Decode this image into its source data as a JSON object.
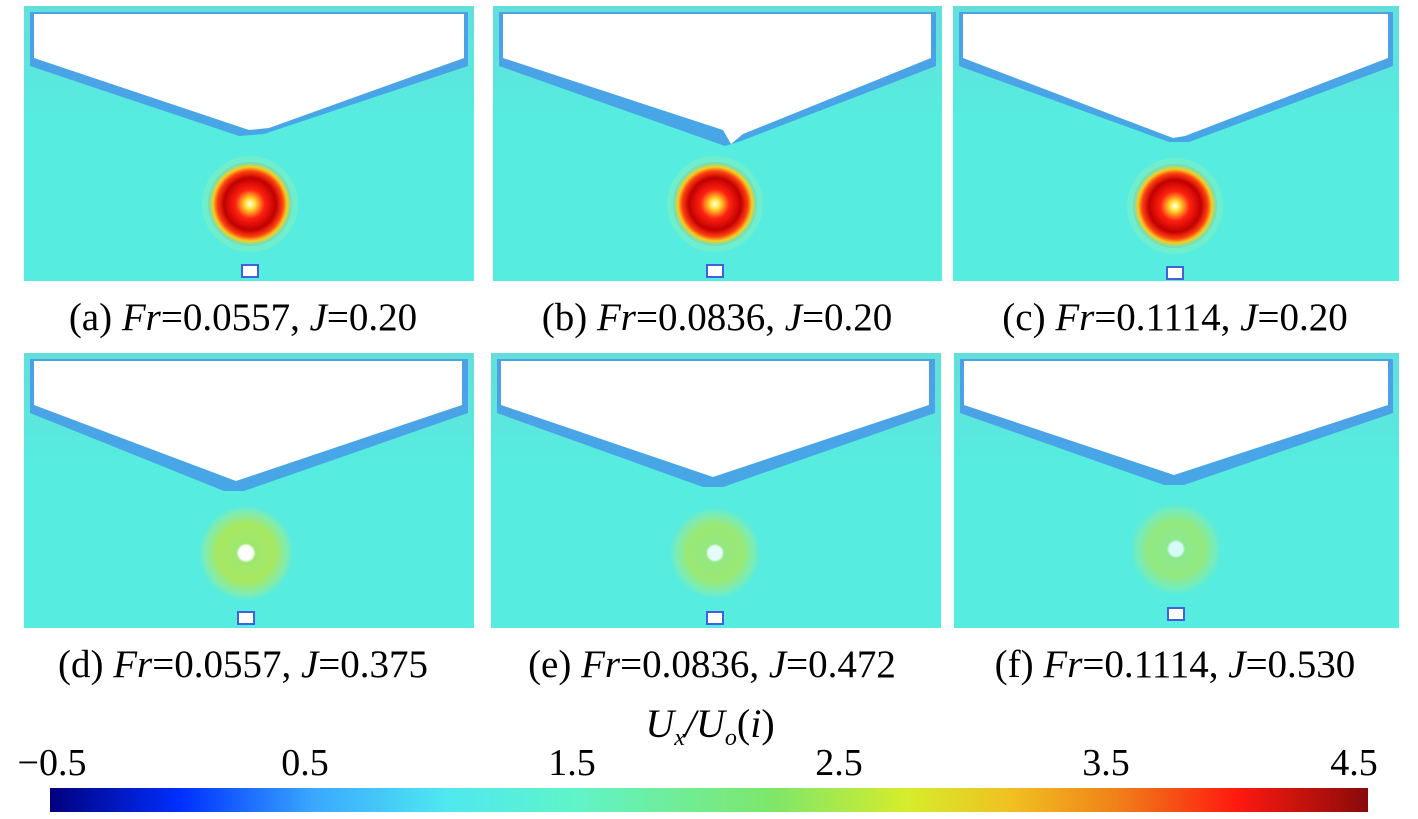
{
  "figure": {
    "panels": [
      {
        "id": "a",
        "label": "(a)",
        "fr_symbol": "Fr",
        "fr_value": "=0.0557, ",
        "j_symbol": "J",
        "j_value": "=0.20",
        "core": "strong"
      },
      {
        "id": "b",
        "label": "(b)",
        "fr_symbol": "Fr",
        "fr_value": "=0.0836, ",
        "j_symbol": "J",
        "j_value": "=0.20",
        "core": "strong"
      },
      {
        "id": "c",
        "label": "(c)",
        "fr_symbol": "Fr",
        "fr_value": "=0.1114, ",
        "j_symbol": "J",
        "j_value": "=0.20",
        "core": "strong"
      },
      {
        "id": "d",
        "label": "(d)",
        "fr_symbol": "Fr",
        "fr_value": "=0.0557, ",
        "j_symbol": "J",
        "j_value": "=0.375",
        "core": "weak"
      },
      {
        "id": "e",
        "label": "(e)",
        "fr_symbol": "Fr",
        "fr_value": "=0.0836, ",
        "j_symbol": "J",
        "j_value": "=0.472",
        "core": "weak"
      },
      {
        "id": "f",
        "label": "(f)",
        "fr_symbol": "Fr",
        "fr_value": "=0.1114, ",
        "j_symbol": "J",
        "j_value": "=0.530",
        "core": "weak"
      }
    ],
    "colorbar": {
      "title_u": "U",
      "title_x": "x",
      "title_sep": "/U",
      "title_o": "o",
      "title_open": "(",
      "title_i": "i",
      "title_close": ")",
      "ticks": [
        "−0.5",
        "0.5",
        "1.5",
        "2.5",
        "3.5",
        "4.5"
      ],
      "range": [
        -0.5,
        4.5
      ]
    },
    "colors": {
      "background_field": "#56ecdf",
      "low": "#00007f",
      "high": "#8a0a0a"
    }
  }
}
